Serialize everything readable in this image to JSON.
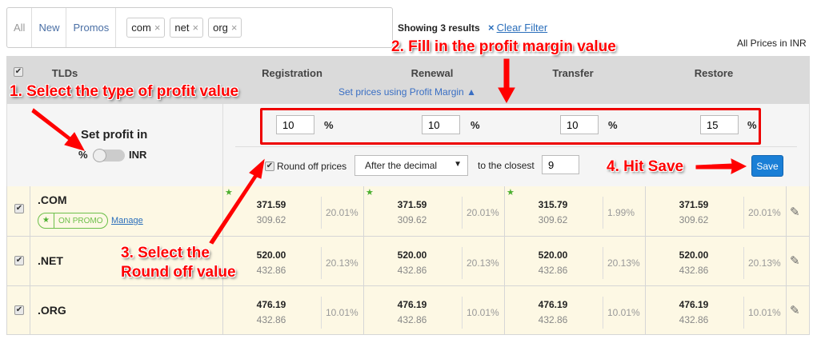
{
  "filter": {
    "tabs": [
      "All",
      "New",
      "Promos"
    ],
    "chips": [
      "com",
      "net",
      "org"
    ],
    "remove_glyph": "×"
  },
  "results": {
    "showing": "Showing 3 results",
    "clear": "Clear Filter",
    "clear_icon": "×",
    "currency_note": "All Prices in INR"
  },
  "header": {
    "tlds": "TLDs",
    "columns": [
      "Registration",
      "Renewal",
      "Transfer",
      "Restore"
    ],
    "set_prices": "Set prices using Profit Margin ▲"
  },
  "profit": {
    "label": "Set profit in",
    "toggle_left": "%",
    "toggle_right": "INR",
    "toggle_value": "%",
    "values": [
      "10",
      "10",
      "10",
      "15"
    ],
    "unit": "%",
    "round_label": "Round off prices",
    "round_checked": true,
    "round_option": "After the decimal",
    "closest_label": "to the closest",
    "closest_value": "9",
    "save": "Save"
  },
  "rows": [
    {
      "tld": ".COM",
      "checked": true,
      "promo": "ON PROMO",
      "manage": "Manage",
      "cells": [
        {
          "price": "371.59",
          "cost": "309.62",
          "margin": "20.01%",
          "star": true
        },
        {
          "price": "371.59",
          "cost": "309.62",
          "margin": "20.01%",
          "star": true
        },
        {
          "price": "315.79",
          "cost": "309.62",
          "margin": "1.99%",
          "star": true
        },
        {
          "price": "371.59",
          "cost": "309.62",
          "margin": "20.01%",
          "star": false
        }
      ]
    },
    {
      "tld": ".NET",
      "checked": true,
      "cells": [
        {
          "price": "520.00",
          "cost": "432.86",
          "margin": "20.13%"
        },
        {
          "price": "520.00",
          "cost": "432.86",
          "margin": "20.13%"
        },
        {
          "price": "520.00",
          "cost": "432.86",
          "margin": "20.13%"
        },
        {
          "price": "520.00",
          "cost": "432.86",
          "margin": "20.13%"
        }
      ]
    },
    {
      "tld": ".ORG",
      "checked": true,
      "cells": [
        {
          "price": "476.19",
          "cost": "432.86",
          "margin": "10.01%"
        },
        {
          "price": "476.19",
          "cost": "432.86",
          "margin": "10.01%"
        },
        {
          "price": "476.19",
          "cost": "432.86",
          "margin": "10.01%"
        },
        {
          "price": "476.19",
          "cost": "432.86",
          "margin": "10.01%"
        }
      ]
    }
  ],
  "annotations": {
    "step1": "1. Select the type of profit value",
    "step2": "2. Fill in the profit margin value",
    "step3a": "3. Select the",
    "step3b": "Round off value",
    "step4": "4. Hit Save"
  },
  "colors": {
    "annotation": "#ff0000",
    "save": "#1a7fd6",
    "row_bg": "#fdf8e4",
    "promo": "#6cbf4a",
    "link": "#2a6ebb"
  }
}
